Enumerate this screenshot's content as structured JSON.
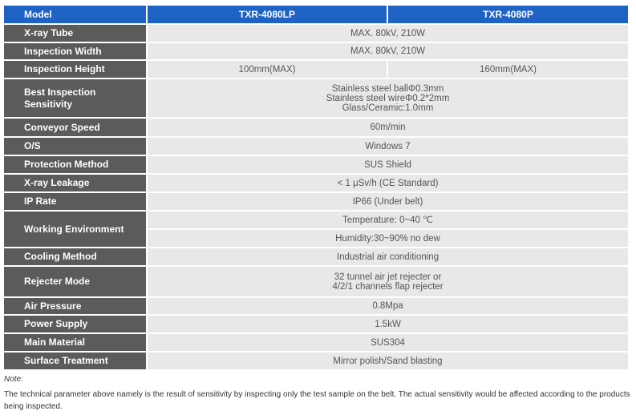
{
  "table": {
    "header": [
      "Model",
      "TXR-4080LP",
      "TXR-4080P"
    ],
    "rows": [
      {
        "label": "X-ray Tube",
        "value": "MAX. 80kV, 210W"
      },
      {
        "label": "Inspection Width",
        "value": "MAX. 80kV, 210W"
      },
      {
        "label": "Inspection Height",
        "columns": [
          "100mm(MAX)",
          "160mm(MAX)"
        ]
      },
      {
        "label": "Best Inspection Sensitivity",
        "lines": [
          "Stainless steel ballΦ0.3mm",
          "Stainless steel wireΦ0.2*2mm",
          "Glass/Ceramic:1.0mm"
        ]
      },
      {
        "label": "Conveyor Speed",
        "value": "60m/min"
      },
      {
        "label": "O/S",
        "value": "Windows 7"
      },
      {
        "label": "Protection Method",
        "value": "SUS Shield"
      },
      {
        "label": "X-ray Leakage",
        "value": "< 1 μSv/h (CE Standard)"
      },
      {
        "label": "IP Rate",
        "value": "IP66 (Under belt)"
      },
      {
        "label": "Working Environment",
        "subrows": [
          "Temperature: 0~40 ℃",
          "Humidity:30~90% no dew"
        ]
      },
      {
        "label": "Cooling Method",
        "value": "Industrial air conditioning"
      },
      {
        "label": "Rejecter Mode",
        "lines": [
          "32 tunnel air jet rejecter or",
          "4/2/1 channels flap rejecter"
        ]
      },
      {
        "label": "Air Pressure",
        "value": "0.8Mpa"
      },
      {
        "label": "Power Supply",
        "value": "1.5kW"
      },
      {
        "label": "Main Material",
        "value": "SUS304"
      },
      {
        "label": "Surface Treatment",
        "value": "Mirror polish/Sand blasting"
      }
    ]
  },
  "note": {
    "title": "Note:",
    "text": "The technical parameter above namely is the result of sensitivity by inspecting only the test sample on the belt. The actual sensitivity would be affected according to the products being inspected."
  }
}
